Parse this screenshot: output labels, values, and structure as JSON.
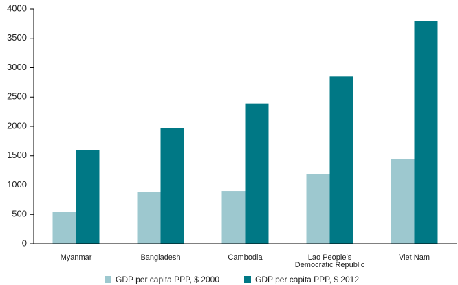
{
  "chart_data": {
    "type": "bar",
    "categories": [
      "Myanmar",
      "Bangladesh",
      "Cambodia",
      "Lao People’s Democratic Republic",
      "Viet Nam"
    ],
    "series": [
      {
        "name": "GDP per capita PPP, $ 2000",
        "color": "#9dc8cf",
        "values": [
          540,
          880,
          900,
          1190,
          1440
        ]
      },
      {
        "name": "GDP per capita PPP, $ 2012",
        "color": "#007885",
        "values": [
          1600,
          1970,
          2390,
          2850,
          3790
        ]
      }
    ],
    "ylim": [
      0,
      4000
    ],
    "yticks": [
      0,
      500,
      1000,
      1500,
      2000,
      2500,
      3000,
      3500,
      4000
    ],
    "grid": false
  }
}
